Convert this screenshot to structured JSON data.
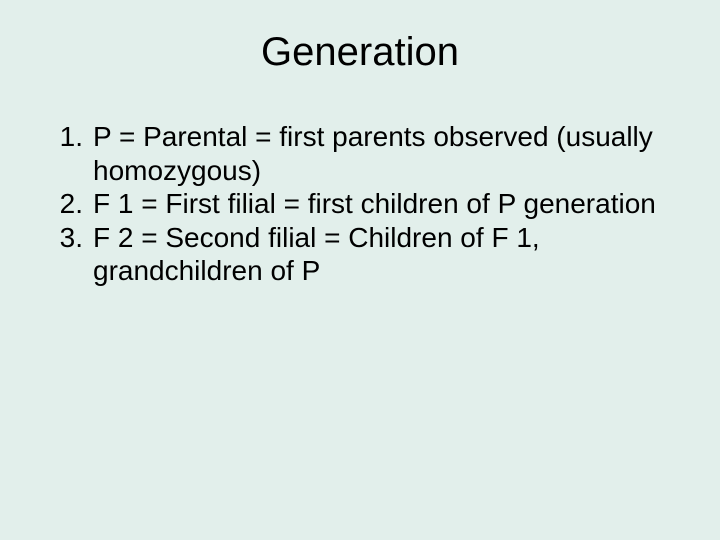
{
  "background_color": "#e2efeb",
  "text_color": "#000000",
  "title": {
    "text": "Generation",
    "fontsize": 40,
    "align": "center"
  },
  "list": {
    "fontsize": 28,
    "items": [
      {
        "number": "1.",
        "text": "P = Parental = first parents observed (usually homozygous)"
      },
      {
        "number": "2.",
        "text": "F 1 = First filial = first children of P generation"
      },
      {
        "number": "3.",
        "text": "F 2 = Second filial = Children of F 1, grandchildren of P"
      }
    ]
  }
}
